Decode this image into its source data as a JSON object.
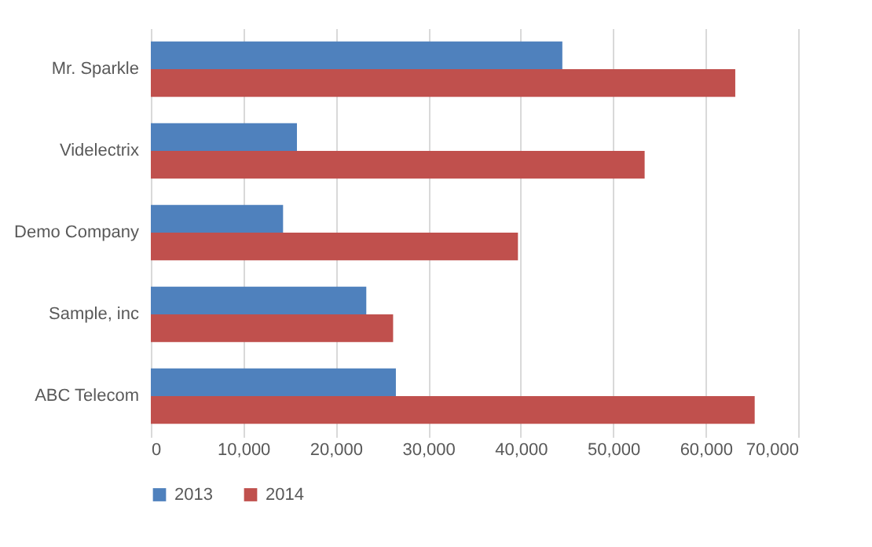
{
  "chart_data": {
    "type": "bar",
    "orientation": "horizontal",
    "categories": [
      "Mr. Sparkle",
      "Videlectrix",
      "Demo Company",
      "Sample, inc",
      "ABC Telecom"
    ],
    "series": [
      {
        "name": "2013",
        "color": "#4f81bd",
        "values": [
          44500,
          15800,
          14300,
          23300,
          26500
        ]
      },
      {
        "name": "2014",
        "color": "#c0504d",
        "values": [
          63200,
          53400,
          39700,
          26200,
          65300
        ]
      }
    ],
    "xlim": [
      0,
      70000
    ],
    "xticks": [
      0,
      {
        "value": 10000,
        "label": "10,000"
      },
      {
        "value": 20000,
        "label": "20,000"
      },
      {
        "value": 30000,
        "label": "30,000"
      },
      {
        "value": 40000,
        "label": "40,000"
      },
      {
        "value": 50000,
        "label": "50,000"
      },
      {
        "value": 60000,
        "label": "60,000"
      },
      {
        "value": 70000,
        "label": "70,000"
      }
    ],
    "grid": "x",
    "legend": "bottom"
  }
}
